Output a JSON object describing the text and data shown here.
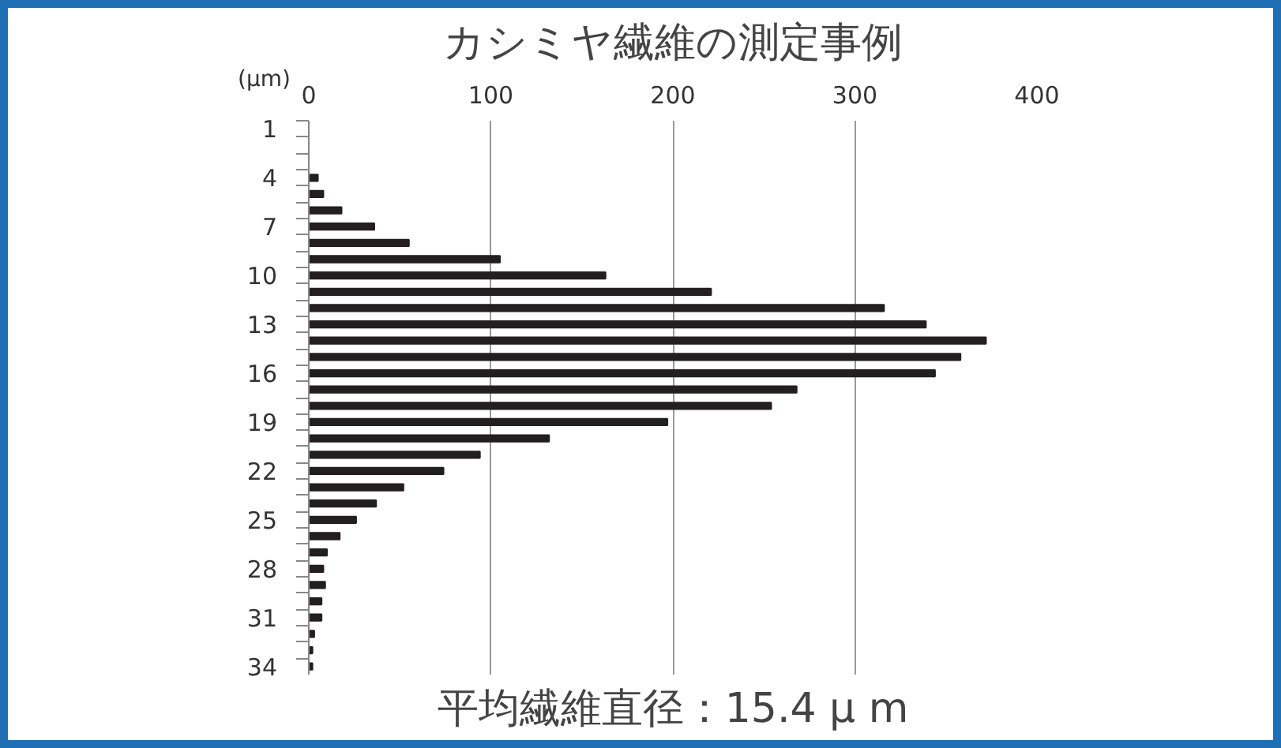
{
  "chart_data": {
    "type": "bar",
    "orientation": "horizontal",
    "title": "カシミヤ繊維の測定事例",
    "ylabel": "(μm)",
    "annotations": [
      "平均繊維直径：15.4 μ m"
    ],
    "categories": [
      "1",
      null,
      null,
      "4",
      null,
      null,
      "7",
      null,
      null,
      "10",
      null,
      null,
      "13",
      null,
      null,
      "16",
      null,
      null,
      "19",
      null,
      null,
      "22",
      null,
      null,
      "25",
      null,
      null,
      "28",
      null,
      null,
      "31",
      null,
      null,
      "34"
    ],
    "values": [
      0,
      0,
      0,
      5,
      8,
      18,
      36,
      55,
      105,
      163,
      221,
      316,
      339,
      372,
      358,
      344,
      268,
      254,
      197,
      132,
      94,
      74,
      52,
      37,
      26,
      17,
      10,
      8,
      9,
      7,
      7,
      3,
      2,
      2
    ],
    "color": "#231f20",
    "xlim": [
      0,
      400
    ],
    "xticks": [
      0,
      100,
      200,
      300,
      400
    ],
    "grid": "x"
  }
}
